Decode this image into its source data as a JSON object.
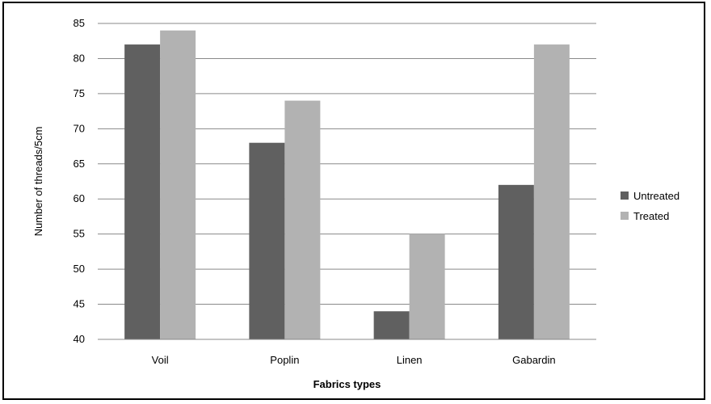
{
  "chart_data": {
    "type": "bar",
    "title": "",
    "xlabel": "Fabrics types",
    "ylabel": "Number of threads/5cm",
    "categories": [
      "Voil",
      "Poplin",
      "Linen",
      "Gabardin"
    ],
    "series": [
      {
        "name": "Untreated",
        "values": [
          82,
          68,
          44,
          62
        ],
        "color": "#606060"
      },
      {
        "name": "Treated",
        "values": [
          84,
          74,
          55,
          82
        ],
        "color": "#b2b2b2"
      }
    ],
    "ylim": [
      40,
      85
    ],
    "yticks": [
      40,
      45,
      50,
      55,
      60,
      65,
      70,
      75,
      80,
      85
    ],
    "grid": true,
    "legend_position": "right"
  }
}
